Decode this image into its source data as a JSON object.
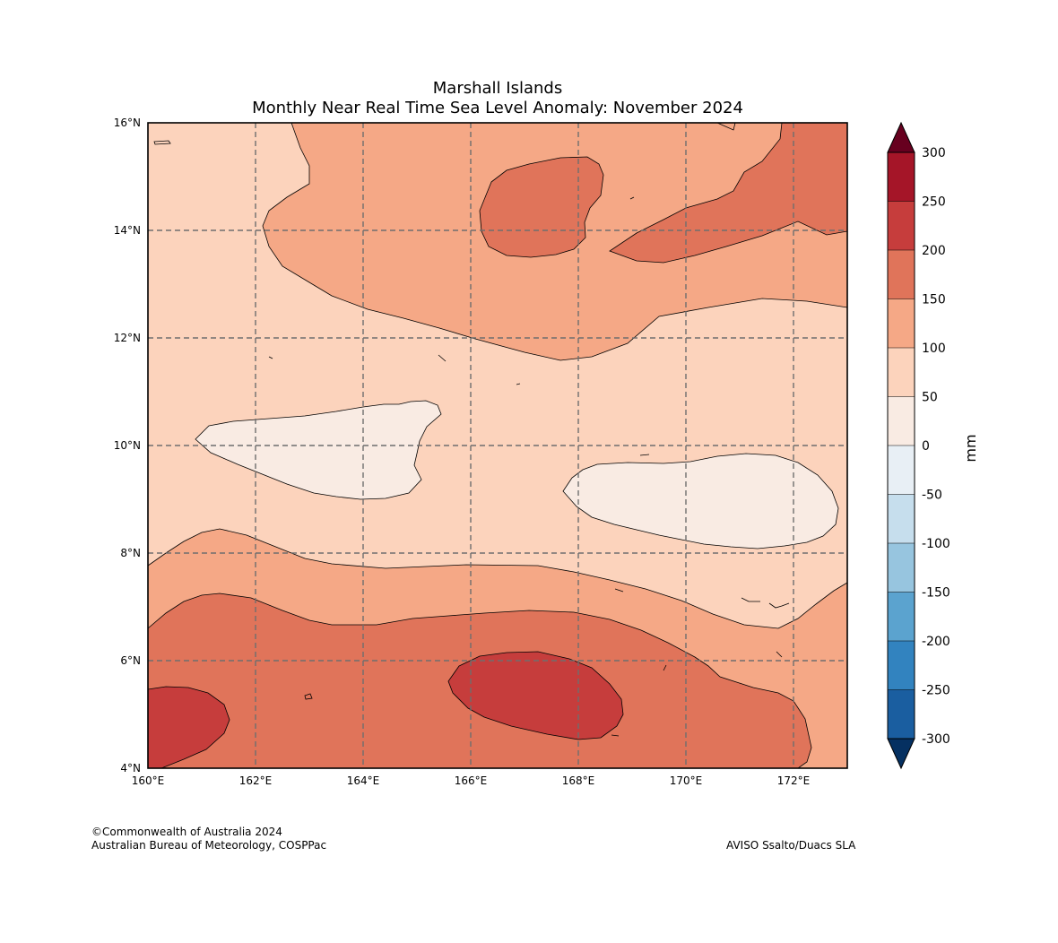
{
  "title": {
    "line1": "Marshall Islands",
    "line2": "Monthly Near Real Time Sea Level Anomaly: November 2024"
  },
  "map": {
    "region": "Marshall Islands",
    "lon_range": [
      160,
      173
    ],
    "lat_range": [
      4,
      16
    ],
    "x_ticks": [
      "160°E",
      "162°E",
      "164°E",
      "166°E",
      "168°E",
      "170°E",
      "172°E"
    ],
    "y_ticks": [
      "4°N",
      "6°N",
      "8°N",
      "10°N",
      "12°N",
      "14°N",
      "16°N"
    ],
    "gridlines": true,
    "gridline_style": "dashed",
    "fill_colors": {
      "0-50": "#f9ebe3",
      "50-100": "#fcd3bc",
      "100-150": "#f5a886",
      "150-200": "#e0745a",
      "200-250": "#c63d3c"
    }
  },
  "colorbar": {
    "label": "mm",
    "ticks": [
      "300",
      "250",
      "200",
      "150",
      "100",
      "50",
      "0",
      "-50",
      "-100",
      "-150",
      "-200",
      "-250",
      "-300"
    ],
    "segment_colors": [
      "#a51528",
      "#c63d3c",
      "#e0745a",
      "#f5a886",
      "#fcd3bc",
      "#f9ebe3",
      "#e8eff5",
      "#c6deed",
      "#97c5df",
      "#5ba3cf",
      "#3283bf",
      "#1a5ea0"
    ],
    "top_extend_color": "#67001f",
    "bottom_extend_color": "#053061"
  },
  "footer": {
    "copyright": "©Commonwealth of Australia 2024",
    "agency": "Australian Bureau of Meteorology, COSPPac",
    "source": "AVISO Ssalto/Duacs SLA"
  }
}
